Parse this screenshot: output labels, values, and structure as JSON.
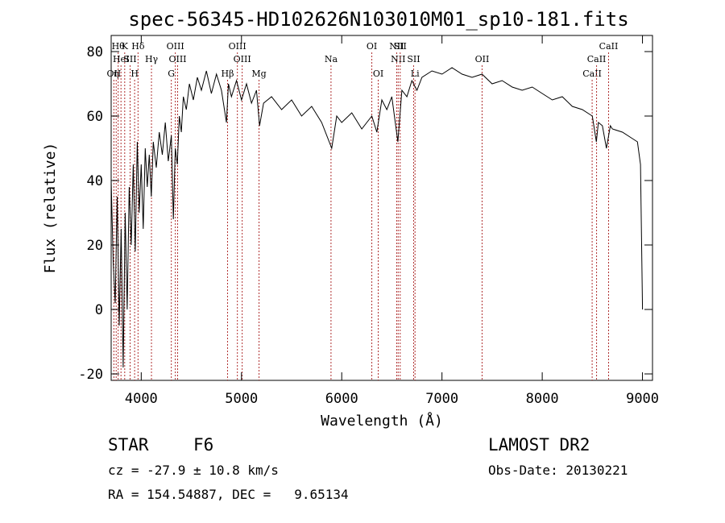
{
  "chart_data": {
    "type": "line",
    "title": "spec-56345-HD102626N103010M01_sp10-181.fits",
    "xlabel": "Wavelength (Å)",
    "ylabel": "Flux (relative)",
    "xlim": [
      3700,
      9100
    ],
    "ylim": [
      -22,
      85
    ],
    "xticks": [
      4000,
      5000,
      6000,
      7000,
      8000,
      9000
    ],
    "yticks": [
      -20,
      0,
      20,
      40,
      60,
      80
    ],
    "line_color": "#000000",
    "marker_color": "#b03030",
    "series": [
      {
        "points": [
          [
            3700,
            40
          ],
          [
            3720,
            15
          ],
          [
            3740,
            2
          ],
          [
            3760,
            35
          ],
          [
            3780,
            -5
          ],
          [
            3800,
            25
          ],
          [
            3820,
            -18
          ],
          [
            3840,
            30
          ],
          [
            3860,
            0
          ],
          [
            3880,
            38
          ],
          [
            3900,
            20
          ],
          [
            3920,
            45
          ],
          [
            3940,
            18
          ],
          [
            3960,
            52
          ],
          [
            3980,
            30
          ],
          [
            4000,
            45
          ],
          [
            4020,
            25
          ],
          [
            4040,
            50
          ],
          [
            4060,
            38
          ],
          [
            4080,
            48
          ],
          [
            4100,
            35
          ],
          [
            4120,
            52
          ],
          [
            4150,
            44
          ],
          [
            4180,
            55
          ],
          [
            4210,
            48
          ],
          [
            4240,
            58
          ],
          [
            4270,
            46
          ],
          [
            4300,
            54
          ],
          [
            4320,
            28
          ],
          [
            4340,
            50
          ],
          [
            4360,
            45
          ],
          [
            4380,
            60
          ],
          [
            4400,
            55
          ],
          [
            4420,
            66
          ],
          [
            4450,
            62
          ],
          [
            4480,
            70
          ],
          [
            4520,
            65
          ],
          [
            4560,
            72
          ],
          [
            4600,
            68
          ],
          [
            4650,
            74
          ],
          [
            4700,
            67
          ],
          [
            4750,
            73
          ],
          [
            4800,
            68
          ],
          [
            4850,
            58
          ],
          [
            4870,
            70
          ],
          [
            4900,
            66
          ],
          [
            4950,
            71
          ],
          [
            5000,
            65
          ],
          [
            5050,
            70
          ],
          [
            5100,
            64
          ],
          [
            5150,
            68
          ],
          [
            5180,
            57
          ],
          [
            5220,
            64
          ],
          [
            5300,
            66
          ],
          [
            5400,
            62
          ],
          [
            5500,
            65
          ],
          [
            5600,
            60
          ],
          [
            5700,
            63
          ],
          [
            5800,
            58
          ],
          [
            5900,
            50
          ],
          [
            5950,
            60
          ],
          [
            6000,
            58
          ],
          [
            6100,
            61
          ],
          [
            6200,
            56
          ],
          [
            6300,
            60
          ],
          [
            6350,
            55
          ],
          [
            6400,
            65
          ],
          [
            6450,
            62
          ],
          [
            6500,
            66
          ],
          [
            6560,
            52
          ],
          [
            6600,
            68
          ],
          [
            6650,
            66
          ],
          [
            6700,
            71
          ],
          [
            6750,
            68
          ],
          [
            6800,
            72
          ],
          [
            6900,
            74
          ],
          [
            7000,
            73
          ],
          [
            7100,
            75
          ],
          [
            7200,
            73
          ],
          [
            7300,
            72
          ],
          [
            7400,
            73
          ],
          [
            7500,
            70
          ],
          [
            7600,
            71
          ],
          [
            7700,
            69
          ],
          [
            7800,
            68
          ],
          [
            7900,
            69
          ],
          [
            8000,
            67
          ],
          [
            8100,
            65
          ],
          [
            8200,
            66
          ],
          [
            8300,
            63
          ],
          [
            8400,
            62
          ],
          [
            8500,
            60
          ],
          [
            8540,
            52
          ],
          [
            8560,
            58
          ],
          [
            8600,
            57
          ],
          [
            8640,
            50
          ],
          [
            8680,
            57
          ],
          [
            8700,
            56
          ],
          [
            8800,
            55
          ],
          [
            8900,
            53
          ],
          [
            8950,
            52
          ],
          [
            8980,
            45
          ],
          [
            9000,
            0
          ]
        ]
      }
    ],
    "line_markers": [
      {
        "wavelength": 3727,
        "label": "OII",
        "row": 3
      },
      {
        "wavelength": 3750,
        "label": "η",
        "row": 3
      },
      {
        "wavelength": 3770,
        "label": "Hθ",
        "row": 1
      },
      {
        "wavelength": 3798,
        "label": "HeI",
        "row": 2
      },
      {
        "wavelength": 3835,
        "label": "K",
        "row": 1
      },
      {
        "wavelength": 3889,
        "label": "SII",
        "row": 2
      },
      {
        "wavelength": 3934,
        "label": "H",
        "row": 3
      },
      {
        "wavelength": 3968,
        "label": "Hδ",
        "row": 1
      },
      {
        "wavelength": 4102,
        "label": "Hγ",
        "row": 2
      },
      {
        "wavelength": 4300,
        "label": "G",
        "row": 3
      },
      {
        "wavelength": 4340,
        "label": "OIII",
        "row": 1
      },
      {
        "wavelength": 4363,
        "label": "OIII",
        "row": 2
      },
      {
        "wavelength": 4861,
        "label": "Hβ",
        "row": 3
      },
      {
        "wavelength": 4959,
        "label": "OIII",
        "row": 1
      },
      {
        "wavelength": 5007,
        "label": "OIII",
        "row": 2
      },
      {
        "wavelength": 5175,
        "label": "Mg",
        "row": 3
      },
      {
        "wavelength": 5893,
        "label": "Na",
        "row": 2
      },
      {
        "wavelength": 6300,
        "label": "OI",
        "row": 1
      },
      {
        "wavelength": 6364,
        "label": "OI",
        "row": 3
      },
      {
        "wavelength": 6548,
        "label": "NII",
        "row": 1
      },
      {
        "wavelength": 6563,
        "label": "NII",
        "row": 2
      },
      {
        "wavelength": 6583,
        "label": "SII",
        "row": 1
      },
      {
        "wavelength": 6717,
        "label": "SII",
        "row": 2
      },
      {
        "wavelength": 6731,
        "label": "Li",
        "row": 3
      },
      {
        "wavelength": 7400,
        "label": "OII",
        "row": 2
      },
      {
        "wavelength": 8498,
        "label": "CaII",
        "row": 3
      },
      {
        "wavelength": 8542,
        "label": "CaII",
        "row": 2
      },
      {
        "wavelength": 8662,
        "label": "CaII",
        "row": 1
      }
    ]
  },
  "info": {
    "object_class": "STAR",
    "subclass": "F6",
    "survey": "LAMOST DR2",
    "redshift": "cz = -27.9 ± 10.8 km/s",
    "obs_date": "Obs-Date: 20130221",
    "coordinates": "RA = 154.54887, DEC =   9.65134"
  }
}
